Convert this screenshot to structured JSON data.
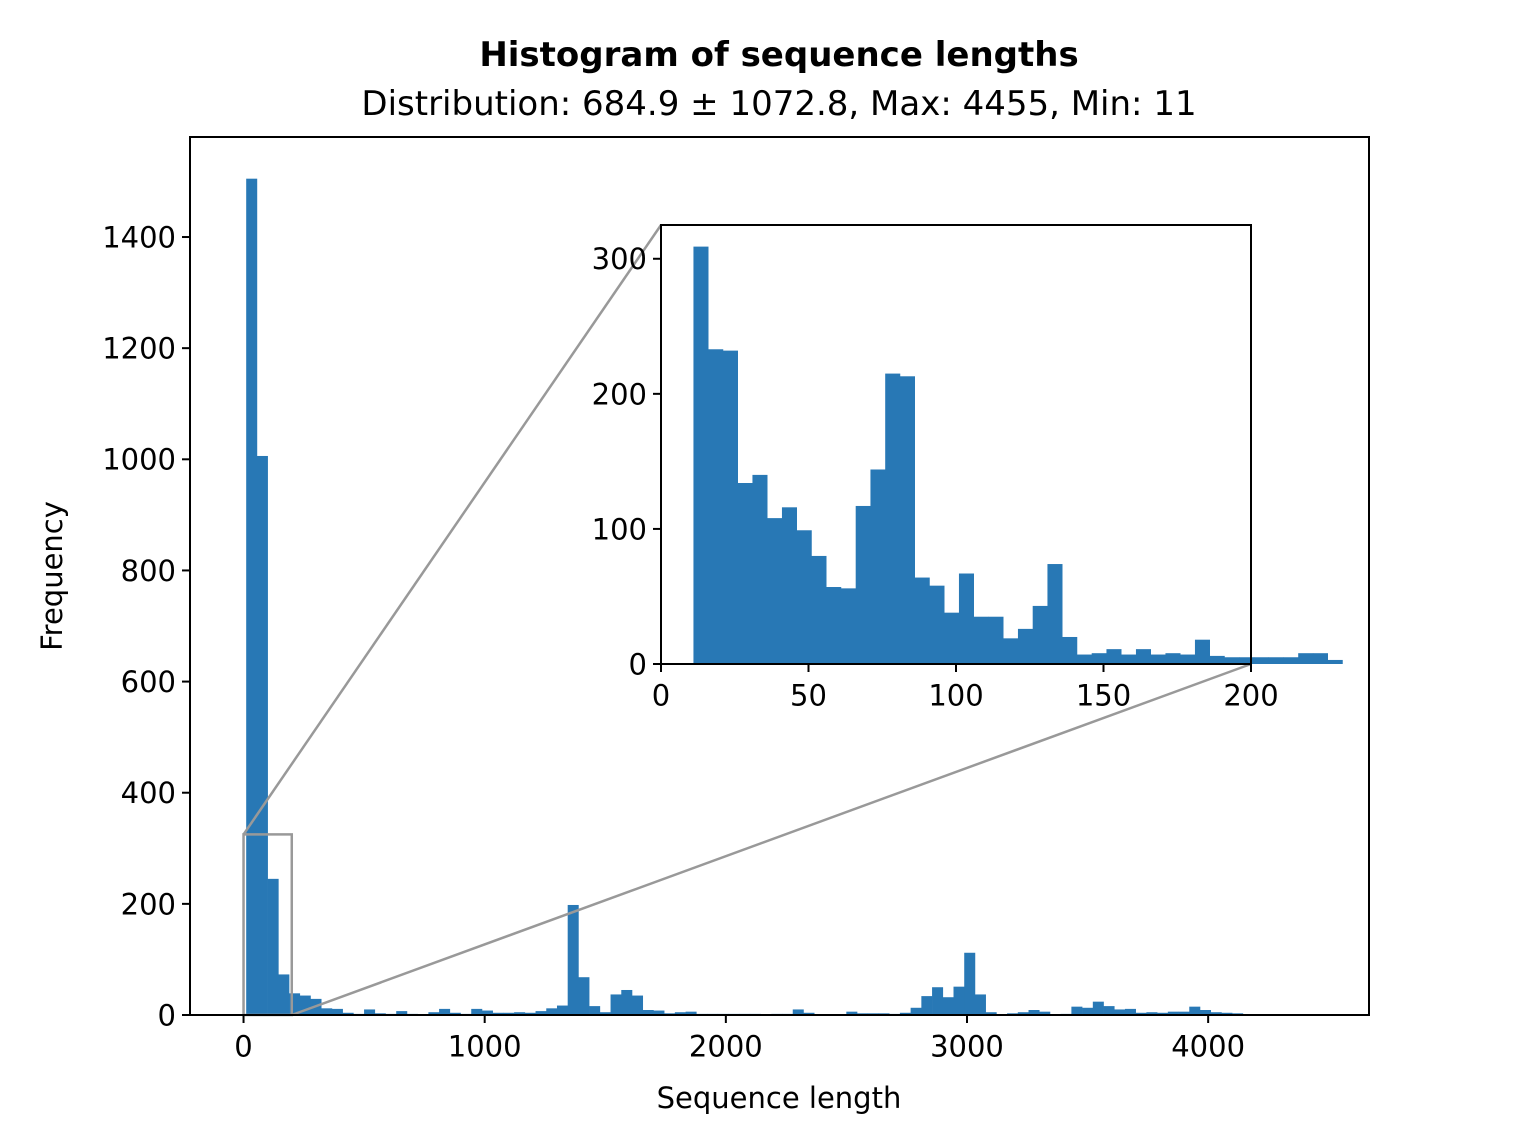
{
  "chart_data": {
    "type": "bar",
    "title": "Histogram of sequence lengths",
    "subtitle": "Distribution: 684.9 ± 1072.8, Max: 4455, Min: 11",
    "xlabel": "Sequence length",
    "ylabel": "Frequency",
    "bar_color": "#2878b5",
    "connector_color": "#999999",
    "main": {
      "xlim": [
        -222,
        4667
      ],
      "ylim": [
        0,
        1580
      ],
      "xticks": [
        0,
        1000,
        2000,
        3000,
        4000
      ],
      "yticks": [
        0,
        200,
        400,
        600,
        800,
        1000,
        1200,
        1400
      ],
      "bin_start": 11,
      "bin_width": 44.44,
      "values": [
        1505,
        1006,
        245,
        73,
        39,
        35,
        29,
        12,
        11,
        4,
        2,
        10,
        3,
        2,
        7,
        2,
        1,
        5,
        11,
        4,
        2,
        11,
        8,
        4,
        4,
        5,
        4,
        7,
        12,
        17,
        198,
        68,
        16,
        5,
        37,
        45,
        35,
        9,
        8,
        3,
        5,
        6,
        2,
        2,
        2,
        2,
        2,
        2,
        1,
        2,
        2,
        10,
        4,
        1,
        1,
        1,
        6,
        3,
        3,
        3,
        2,
        4,
        13,
        34,
        50,
        32,
        51,
        112,
        37,
        5,
        1,
        3,
        5,
        9,
        6,
        1,
        2,
        15,
        13,
        24,
        16,
        10,
        11,
        4,
        5,
        4,
        6,
        6,
        15,
        9,
        5,
        4,
        3
      ]
    },
    "inset": {
      "xlim": [
        0,
        200
      ],
      "ylim": [
        0,
        325
      ],
      "xticks": [
        0,
        50,
        100,
        150,
        200
      ],
      "yticks": [
        0,
        100,
        200,
        300
      ],
      "bin_start": 11,
      "bin_width": 5,
      "values": [
        309,
        233,
        232,
        134,
        140,
        108,
        116,
        99,
        80,
        57,
        56,
        117,
        144,
        215,
        213,
        64,
        58,
        38,
        67,
        35,
        35,
        19,
        26,
        43,
        74,
        20,
        7,
        8,
        11,
        7,
        11,
        7,
        8,
        7,
        18,
        6,
        5,
        5,
        5,
        5,
        5,
        8,
        8,
        3
      ]
    },
    "zoom_region": {
      "x": [
        0,
        200
      ],
      "y": [
        0,
        325
      ]
    }
  }
}
